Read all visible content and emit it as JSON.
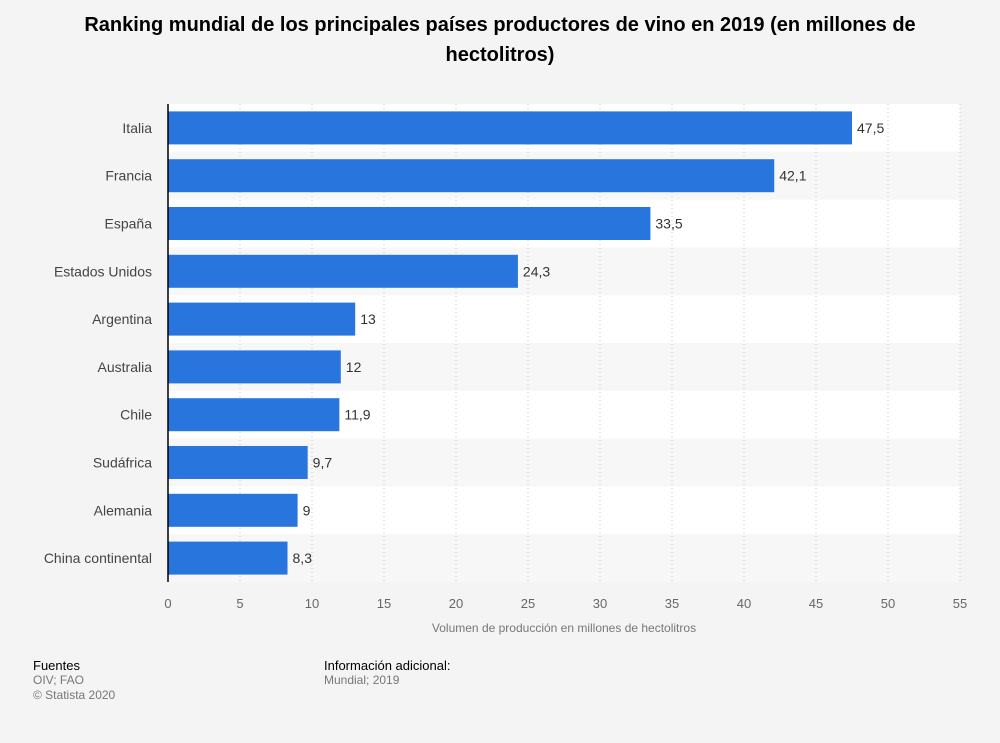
{
  "title": "Ranking mundial de los principales países productores de vino en 2019 (en millones de hectolitros)",
  "chart_data": {
    "type": "bar",
    "orientation": "horizontal",
    "categories": [
      "Italia",
      "Francia",
      "España",
      "Estados Unidos",
      "Argentina",
      "Australia",
      "Chile",
      "Sudáfrica",
      "Alemania",
      "China continental"
    ],
    "values": [
      47.5,
      42.1,
      33.5,
      24.3,
      13,
      12,
      11.9,
      9.7,
      9,
      8.3
    ],
    "value_labels": [
      "47,5",
      "42,1",
      "33,5",
      "24,3",
      "13",
      "12",
      "11,9",
      "9,7",
      "9",
      "8,3"
    ],
    "xlabel": "Volumen de producción en millones de hectolitros",
    "ylabel": "",
    "xlim": [
      0,
      55
    ],
    "xticks": [
      0,
      5,
      10,
      15,
      20,
      25,
      30,
      35,
      40,
      45,
      50,
      55
    ],
    "grid": true,
    "bar_color": "#2876dd"
  },
  "footer": {
    "sources_heading": "Fuentes",
    "sources_text": "OIV; FAO",
    "copyright": "© Statista 2020",
    "info_heading": "Información adicional:",
    "info_text": "Mundial; 2019"
  }
}
